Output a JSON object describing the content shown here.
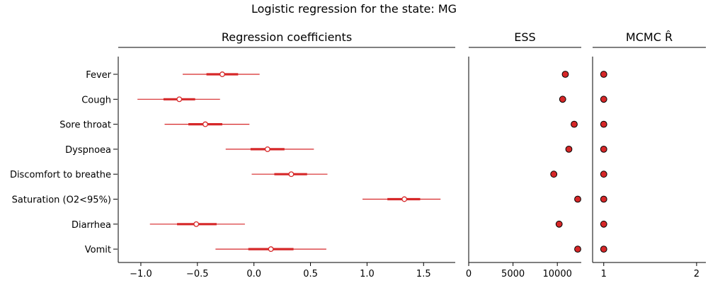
{
  "figure": {
    "suptitle": "Logistic regression for the state: MG"
  },
  "chart_data": [
    {
      "type": "forest",
      "panel": "coefficients",
      "title": "Regression coefficients",
      "xlim": [
        -1.2,
        1.78
      ],
      "xticks": [
        -1.0,
        -0.5,
        0.0,
        0.5,
        1.0,
        1.5
      ],
      "xtick_labels": [
        "−1.0",
        "−0.5",
        "0.0",
        "0.5",
        "1.0",
        "1.5"
      ],
      "marker_color": "#d62728",
      "categories": [
        "Fever",
        "Cough",
        "Sore throat",
        "Dyspnoea",
        "Discomfort to breathe",
        "Saturation (O2<95%)",
        "Diarrhea",
        "Vomit"
      ],
      "mean": [
        -0.28,
        -0.66,
        -0.43,
        0.12,
        0.33,
        1.33,
        -0.51,
        0.15
      ],
      "ci_inner": [
        [
          -0.42,
          -0.14
        ],
        [
          -0.8,
          -0.52
        ],
        [
          -0.58,
          -0.28
        ],
        [
          -0.03,
          0.27
        ],
        [
          0.18,
          0.47
        ],
        [
          1.18,
          1.47
        ],
        [
          -0.68,
          -0.33
        ],
        [
          -0.05,
          0.35
        ]
      ],
      "ci_outer": [
        [
          -0.63,
          0.05
        ],
        [
          -1.03,
          -0.3
        ],
        [
          -0.79,
          -0.04
        ],
        [
          -0.25,
          0.53
        ],
        [
          -0.02,
          0.65
        ],
        [
          0.96,
          1.65
        ],
        [
          -0.92,
          -0.08
        ],
        [
          -0.34,
          0.64
        ]
      ]
    },
    {
      "type": "scatter",
      "panel": "ess",
      "title": "ESS",
      "xlim": [
        0,
        12700
      ],
      "xticks": [
        0,
        5000,
        10000
      ],
      "xtick_labels": [
        "0",
        "5000",
        "10000"
      ],
      "values": [
        10900,
        10600,
        11900,
        11300,
        9600,
        12300,
        10200,
        12300
      ],
      "marker_color": "#d62728"
    },
    {
      "type": "scatter",
      "panel": "rhat",
      "title": "MCMC R̂",
      "xlim": [
        0.88,
        2.1
      ],
      "xticks": [
        1,
        2
      ],
      "xtick_labels": [
        "1",
        "2"
      ],
      "values": [
        1.0,
        1.0,
        1.0,
        1.0,
        1.0,
        1.0,
        1.0,
        1.0
      ],
      "marker_color": "#d62728"
    }
  ]
}
